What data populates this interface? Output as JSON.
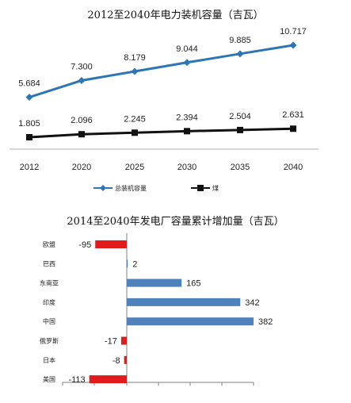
{
  "chart_data": [
    {
      "type": "line",
      "title": "2012至2040年电力装机容量（吉瓦）",
      "categories": [
        "2012",
        "2020",
        "2025",
        "2030",
        "2035",
        "2040"
      ],
      "series": [
        {
          "name": "总装机容量",
          "color": "#2e75b6",
          "marker": "diamond",
          "values": [
            5.684,
            7.3,
            8.179,
            9.044,
            9.885,
            10.717
          ],
          "labels": [
            "5.684",
            "7.300",
            "8.179",
            "9.044",
            "9.885",
            "10.717"
          ]
        },
        {
          "name": "煤",
          "color": "#111111",
          "marker": "square",
          "values": [
            1.805,
            2.096,
            2.245,
            2.394,
            2.504,
            2.631
          ],
          "labels": [
            "1.805",
            "2.096",
            "2.245",
            "2.394",
            "2.504",
            "2.631"
          ]
        }
      ],
      "grid": false,
      "legend": "bottom"
    },
    {
      "type": "bar",
      "orientation": "horizontal",
      "title": "2014至2040年发电厂容量累计增加量（吉瓦）",
      "categories": [
        "欧盟",
        "巴西",
        "东南亚",
        "印度",
        "中国",
        "俄罗斯",
        "日本",
        "美国"
      ],
      "values": [
        -95,
        2,
        165,
        342,
        382,
        -17,
        -8,
        -113
      ],
      "labels": [
        "-95",
        "2",
        "165",
        "342",
        "382",
        "-17",
        "-8",
        "-113"
      ],
      "colors": {
        "positive": "#4f81bd",
        "negative": "#e31a1c"
      },
      "grid": false
    }
  ]
}
